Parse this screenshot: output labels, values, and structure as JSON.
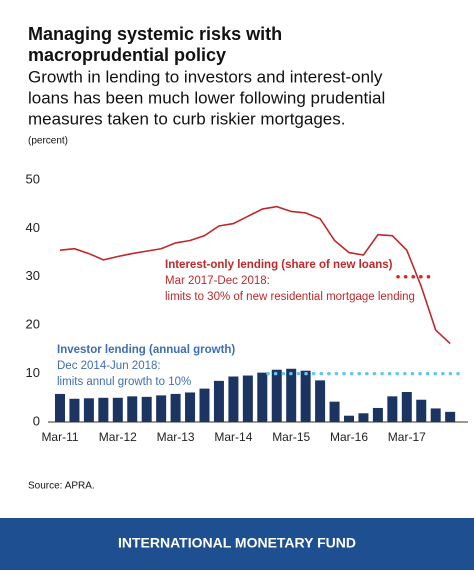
{
  "header": {
    "title_lines": [
      "Managing systemic risks with",
      "macroprudential policy"
    ],
    "subtitle_lines": [
      "Growth in lending to investors and interest-only",
      "loans has been much lower following prudential",
      "measures taken to curb riskier mortgages."
    ]
  },
  "chart_data": {
    "type": "bar-line",
    "y_unit": "(percent)",
    "categories": [
      "Mar-11",
      null,
      null,
      null,
      "Mar-12",
      null,
      null,
      null,
      "Mar-13",
      null,
      null,
      null,
      "Mar-14",
      null,
      null,
      null,
      "Mar-15",
      null,
      null,
      null,
      "Mar-16",
      null,
      null,
      null,
      "Mar-17",
      null,
      null,
      null,
      null
    ],
    "series": [
      {
        "name": "Investor lending (annual growth)",
        "kind": "bar",
        "color": "#1c3461",
        "values": [
          5.8,
          4.8,
          4.9,
          5.0,
          5.0,
          5.3,
          5.2,
          5.5,
          5.8,
          6.1,
          6.9,
          8.5,
          9.4,
          9.6,
          10.2,
          10.8,
          11.0,
          10.6,
          8.6,
          4.2,
          1.3,
          1.8,
          2.9,
          5.3,
          6.2,
          4.6,
          2.8,
          2.1,
          null
        ]
      },
      {
        "name": "Interest-only lending (share of new loans)",
        "kind": "line",
        "color": "#c0282a",
        "values": [
          35.5,
          35.8,
          34.8,
          33.5,
          34.2,
          34.8,
          35.3,
          35.8,
          37.0,
          37.5,
          38.5,
          40.5,
          41.0,
          42.5,
          44.0,
          44.5,
          43.5,
          43.2,
          42.0,
          37.5,
          35.0,
          34.5,
          38.7,
          38.5,
          35.5,
          28.0,
          19.0,
          16.2,
          null
        ]
      }
    ],
    "annotations": [
      {
        "series": 1,
        "lines": [
          "Mar 2017-Dec 2018:",
          "limits to 30% of new residential mortgage lending"
        ],
        "limit": 30
      },
      {
        "series": 0,
        "lines": [
          "Dec 2014-Jun 2018:",
          "limits annul growth to 10%"
        ],
        "limit": 10
      }
    ],
    "ylim": [
      0,
      50
    ],
    "yticks": [
      0,
      10,
      20,
      30,
      40,
      50
    ],
    "source": "Source: APRA."
  },
  "footer": {
    "text": "INTERNATIONAL MONETARY FUND"
  }
}
